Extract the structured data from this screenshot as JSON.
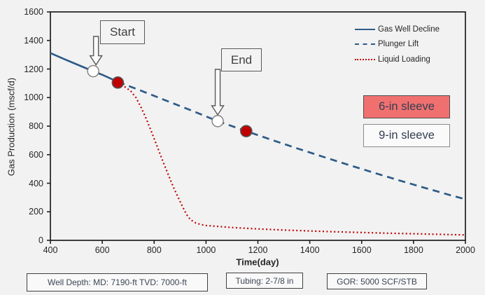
{
  "chart_data": {
    "type": "line",
    "title": "",
    "xlabel": "Time(day)",
    "ylabel": "Gas Production (mscf/d)",
    "xlim": [
      400,
      2000
    ],
    "ylim": [
      0,
      1600
    ],
    "x_ticks": [
      400,
      600,
      800,
      1000,
      1200,
      1400,
      1600,
      1800,
      2000
    ],
    "y_ticks": [
      0,
      200,
      400,
      600,
      800,
      1000,
      1200,
      1400,
      1600
    ],
    "grid": false,
    "legend_position": "top-right",
    "series": [
      {
        "name": "Gas Well Decline",
        "style": "solid",
        "color": "#2D5B88",
        "points": [
          [
            400,
            1312
          ],
          [
            450,
            1272
          ],
          [
            500,
            1234
          ],
          [
            560,
            1188
          ],
          [
            600,
            1160
          ],
          [
            630,
            1135
          ],
          [
            660,
            1110
          ]
        ]
      },
      {
        "name": "Plunger Lift",
        "style": "dashed",
        "color": "#2D5B88",
        "points": [
          [
            660,
            1110
          ],
          [
            750,
            1048
          ],
          [
            850,
            976
          ],
          [
            950,
            905
          ],
          [
            1045,
            835
          ],
          [
            1155,
            765
          ],
          [
            1250,
            706
          ],
          [
            1350,
            645
          ],
          [
            1450,
            586
          ],
          [
            1550,
            528
          ],
          [
            1650,
            472
          ],
          [
            1750,
            417
          ],
          [
            1850,
            364
          ],
          [
            1950,
            312
          ],
          [
            2000,
            288
          ]
        ]
      },
      {
        "name": "Liquid Loading",
        "style": "dotted",
        "color": "#C00000",
        "points": [
          [
            660,
            1102
          ],
          [
            690,
            1072
          ],
          [
            710,
            1045
          ],
          [
            730,
            1000
          ],
          [
            750,
            930
          ],
          [
            770,
            850
          ],
          [
            790,
            760
          ],
          [
            810,
            665
          ],
          [
            830,
            570
          ],
          [
            850,
            480
          ],
          [
            870,
            390
          ],
          [
            890,
            310
          ],
          [
            910,
            235
          ],
          [
            925,
            180
          ],
          [
            940,
            145
          ],
          [
            960,
            122
          ],
          [
            980,
            111
          ],
          [
            1000,
            104
          ],
          [
            1100,
            90
          ],
          [
            1200,
            80
          ],
          [
            1300,
            72
          ],
          [
            1400,
            66
          ],
          [
            1500,
            60
          ],
          [
            1600,
            55
          ],
          [
            1700,
            50
          ],
          [
            1800,
            46
          ],
          [
            1900,
            42
          ],
          [
            2000,
            38
          ]
        ]
      }
    ],
    "markers": {
      "open": [
        [
          565,
          1185
        ],
        [
          1045,
          835
        ]
      ],
      "filled": [
        [
          660,
          1105
        ],
        [
          1155,
          765
        ]
      ]
    }
  },
  "annotations": {
    "start_label": "Start",
    "end_label": "End"
  },
  "badges": {
    "sleeve6": {
      "label": "6-in sleeve",
      "fill": "#F07070"
    },
    "sleeve9": {
      "label": "9-in sleeve",
      "fill": "#FAFAFA"
    }
  },
  "footnotes": {
    "well_depth": "Well Depth: MD: 7190-ft TVD: 7000-ft",
    "tubing": "Tubing: 2-7/8 in",
    "gor": "GOR: 5000 SCF/STB"
  },
  "colors": {
    "line_blue": "#2D5B88",
    "line_red": "#C00000",
    "marker_open_fill": "#FFFFFF",
    "marker_filled_fill": "#C00000",
    "background": "#F2F2F2",
    "axis": "#1F1F1F",
    "text": "#262626",
    "sleeve6_fill": "#F07070",
    "box_border": "#595959"
  }
}
